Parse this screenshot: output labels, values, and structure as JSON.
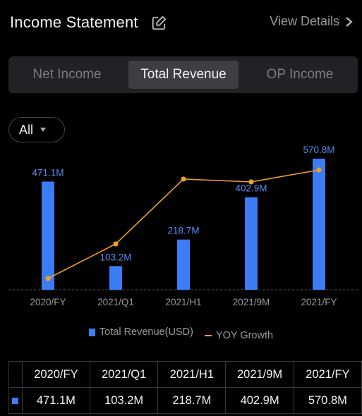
{
  "header": {
    "title": "Income Statement",
    "view_details": "View Details"
  },
  "tabs": [
    {
      "label": "Net Income",
      "active": false
    },
    {
      "label": "Total Revenue",
      "active": true
    },
    {
      "label": "OP Income",
      "active": false
    }
  ],
  "filter": {
    "selected": "All"
  },
  "colors": {
    "bar": "#3c7cf4",
    "line": "#f0a020",
    "accent_label": "#5a8cf0"
  },
  "chart_data": {
    "type": "bar",
    "categories": [
      "2020/FY",
      "2021/Q1",
      "2021/H1",
      "2021/9M",
      "2021/FY"
    ],
    "series": [
      {
        "name": "Total Revenue(USD)",
        "values": [
          471.1,
          103.2,
          218.7,
          402.9,
          570.8
        ]
      },
      {
        "name": "YOY Growth",
        "type": "line",
        "values": [
          null,
          null,
          null,
          null,
          null
        ]
      }
    ],
    "data_labels": [
      "471.1M",
      "103.2M",
      "218.7M",
      "402.9M",
      "570.8M"
    ],
    "grid": false
  },
  "legend": {
    "bar_label": "Total Revenue(USD)",
    "line_label": "YOY Growth"
  },
  "table": {
    "headers": [
      "2020/FY",
      "2021/Q1",
      "2021/H1",
      "2021/9M",
      "2021/FY"
    ],
    "rows": [
      [
        "471.1M",
        "103.2M",
        "218.7M",
        "402.9M",
        "570.8M"
      ]
    ]
  }
}
